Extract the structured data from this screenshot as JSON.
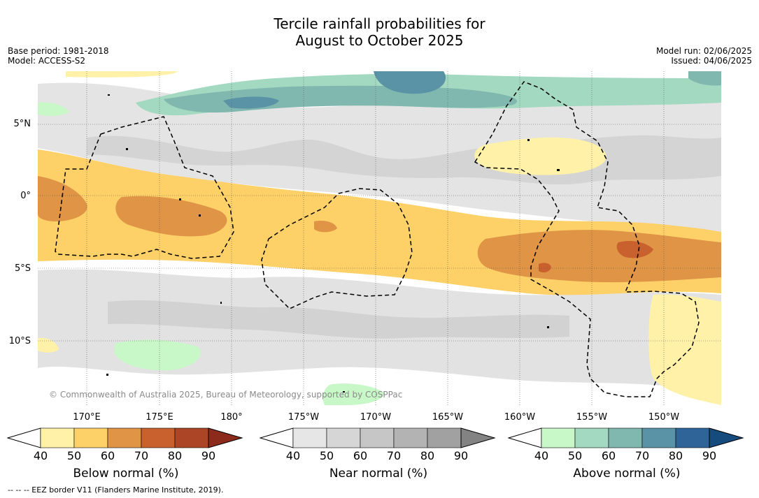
{
  "title_line1": "Tercile rainfall probabilities for",
  "title_line2": "August to October 2025",
  "meta_left": {
    "base_period": "Base period: 1981-2018",
    "model": "Model: ACCESS-S2"
  },
  "meta_right": {
    "model_run": "Model run: 02/06/2025",
    "issued": "Issued: 04/06/2025"
  },
  "latitude_labels": [
    "5°N",
    "0°",
    "5°S",
    "10°S"
  ],
  "longitude_labels": [
    "170°E",
    "175°E",
    "180°",
    "175°W",
    "170°W",
    "165°W",
    "160°W",
    "155°W",
    "150°W"
  ],
  "copyright": "© Commonwealth of Australia 2025, Bureau of Meteorology, supported by COSPPac",
  "eez_note": "--  --  -- EEZ border V11 (Flanders Marine Institute, 2019).",
  "colorbars": [
    {
      "title": "Below normal (%)",
      "ticks": [
        "40",
        "50",
        "60",
        "70",
        "80",
        "90"
      ],
      "colors": [
        "#fff1a8",
        "#fdd068",
        "#e09446",
        "#c9612f",
        "#ab4525",
        "#8c2a1c"
      ]
    },
    {
      "title": "Near normal (%)",
      "ticks": [
        "40",
        "50",
        "60",
        "70",
        "80",
        "90"
      ],
      "colors": [
        "#e6e6e6",
        "#d6d6d6",
        "#c6c6c6",
        "#b3b3b3",
        "#a1a1a1",
        "#838383"
      ]
    },
    {
      "title": "Above normal (%)",
      "ticks": [
        "40",
        "50",
        "60",
        "70",
        "80",
        "90"
      ],
      "colors": [
        "#c8f7c8",
        "#a3d9c0",
        "#80b8b0",
        "#5a92a6",
        "#2f6498",
        "#164b7e"
      ]
    }
  ],
  "colors": {
    "map_background": "#ffffff",
    "eez_border": "#000000",
    "gridline": "#555555"
  }
}
